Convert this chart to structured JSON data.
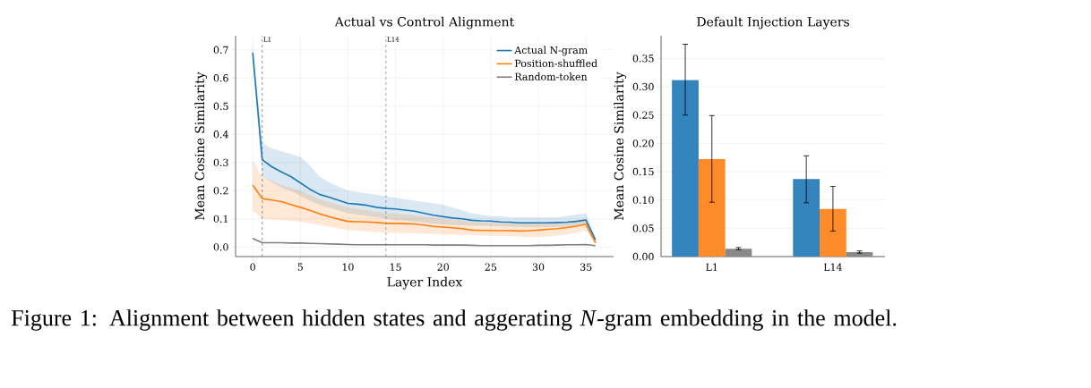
{
  "chart_data": [
    {
      "type": "line",
      "title": "Actual vs Control Alignment",
      "xlabel": "Layer Index",
      "ylabel": "Mean Cosine Similarity",
      "x": [
        0,
        1,
        2,
        3,
        4,
        5,
        6,
        7,
        8,
        9,
        10,
        11,
        12,
        13,
        14,
        15,
        16,
        17,
        18,
        19,
        20,
        21,
        22,
        23,
        24,
        25,
        26,
        27,
        28,
        29,
        30,
        31,
        32,
        33,
        34,
        35,
        36
      ],
      "series": [
        {
          "name": "Actual N-gram",
          "color": "#1f77b4",
          "values": [
            0.69,
            0.31,
            0.285,
            0.267,
            0.25,
            0.228,
            0.205,
            0.187,
            0.177,
            0.166,
            0.155,
            0.152,
            0.148,
            0.141,
            0.137,
            0.135,
            0.131,
            0.127,
            0.12,
            0.113,
            0.108,
            0.103,
            0.1,
            0.095,
            0.093,
            0.092,
            0.089,
            0.088,
            0.086,
            0.086,
            0.086,
            0.086,
            0.087,
            0.088,
            0.091,
            0.096,
            0.025
          ],
          "upper": [
            0.72,
            0.37,
            0.35,
            0.34,
            0.33,
            0.32,
            0.29,
            0.25,
            0.23,
            0.215,
            0.2,
            0.195,
            0.19,
            0.185,
            0.18,
            0.175,
            0.17,
            0.165,
            0.16,
            0.155,
            0.15,
            0.14,
            0.13,
            0.12,
            0.115,
            0.11,
            0.11,
            0.105,
            0.105,
            0.105,
            0.105,
            0.105,
            0.105,
            0.11,
            0.115,
            0.12,
            0.03
          ],
          "lower": [
            0.66,
            0.25,
            0.23,
            0.21,
            0.2,
            0.18,
            0.165,
            0.15,
            0.14,
            0.13,
            0.12,
            0.115,
            0.11,
            0.105,
            0.1,
            0.095,
            0.093,
            0.09,
            0.087,
            0.083,
            0.08,
            0.078,
            0.077,
            0.076,
            0.075,
            0.075,
            0.073,
            0.072,
            0.071,
            0.07,
            0.07,
            0.07,
            0.071,
            0.072,
            0.075,
            0.08,
            0.02
          ]
        },
        {
          "name": "Position-shuffled",
          "color": "#ff7f0e",
          "values": [
            0.22,
            0.172,
            0.167,
            0.161,
            0.151,
            0.141,
            0.13,
            0.118,
            0.108,
            0.099,
            0.091,
            0.09,
            0.089,
            0.087,
            0.084,
            0.084,
            0.083,
            0.082,
            0.078,
            0.073,
            0.071,
            0.068,
            0.065,
            0.06,
            0.059,
            0.059,
            0.058,
            0.058,
            0.057,
            0.058,
            0.06,
            0.063,
            0.065,
            0.069,
            0.074,
            0.081,
            0.015
          ],
          "upper": [
            0.31,
            0.25,
            0.235,
            0.22,
            0.21,
            0.2,
            0.185,
            0.17,
            0.16,
            0.15,
            0.14,
            0.135,
            0.13,
            0.125,
            0.12,
            0.118,
            0.115,
            0.112,
            0.108,
            0.104,
            0.1,
            0.097,
            0.094,
            0.09,
            0.088,
            0.085,
            0.085,
            0.085,
            0.085,
            0.085,
            0.085,
            0.086,
            0.088,
            0.09,
            0.095,
            0.1,
            0.02
          ],
          "lower": [
            0.13,
            0.1,
            0.098,
            0.096,
            0.093,
            0.09,
            0.085,
            0.078,
            0.072,
            0.066,
            0.06,
            0.058,
            0.056,
            0.053,
            0.05,
            0.05,
            0.049,
            0.048,
            0.047,
            0.046,
            0.045,
            0.044,
            0.043,
            0.042,
            0.041,
            0.04,
            0.039,
            0.038,
            0.037,
            0.036,
            0.035,
            0.037,
            0.04,
            0.045,
            0.05,
            0.06,
            0.01
          ]
        },
        {
          "name": "Random-token",
          "color": "#7f7f7f",
          "values": [
            0.03,
            0.015,
            0.015,
            0.015,
            0.014,
            0.014,
            0.013,
            0.012,
            0.011,
            0.01,
            0.009,
            0.008,
            0.008,
            0.008,
            0.008,
            0.008,
            0.008,
            0.008,
            0.008,
            0.007,
            0.007,
            0.007,
            0.007,
            0.006,
            0.005,
            0.005,
            0.005,
            0.005,
            0.005,
            0.005,
            0.006,
            0.006,
            0.007,
            0.008,
            0.008,
            0.009,
            0.005
          ]
        }
      ],
      "xlim": [
        -1.8,
        37.9
      ],
      "ylim": [
        -0.034,
        0.75
      ],
      "xticks": [
        0,
        5,
        10,
        15,
        20,
        25,
        30,
        35
      ],
      "yticks": [
        {
          "value": 0,
          "label": "0.0"
        },
        {
          "value": 0.1,
          "label": "0.1"
        },
        {
          "value": 0.2,
          "label": "0.2"
        },
        {
          "value": 0.3,
          "label": "0.3"
        },
        {
          "value": 0.4,
          "label": "0.4"
        },
        {
          "value": 0.5,
          "label": "0.5"
        },
        {
          "value": 0.6,
          "label": "0.6"
        },
        {
          "value": 0.7,
          "label": "0.7"
        }
      ],
      "ref_lines": [
        {
          "axis": "x",
          "value": 1,
          "label": "L1",
          "color": "#666666",
          "line_style": "dashed"
        },
        {
          "axis": "x",
          "value": 14,
          "label": "L14",
          "color": "#666666",
          "line_style": "dashed"
        }
      ],
      "grid": true,
      "legend": "top right",
      "annotations": [
        "Figure 1: Alignment between hidden states and aggerating *N*-gram embedding in the model."
      ]
    },
    {
      "type": "bar",
      "title": "Default Injection Layers",
      "ylabel": "Mean Cosine Similarity",
      "categories": [
        "L1",
        "L14"
      ],
      "series": [
        {
          "color": "#3383bc",
          "values": [
            0.312,
            0.137
          ],
          "errors": [
            [
              0.25,
              0.375
            ],
            [
              0.095,
              0.178
            ]
          ]
        },
        {
          "color": "#fe8b29",
          "values": [
            0.172,
            0.084
          ],
          "errors": [
            [
              0.096,
              0.249
            ],
            [
              0.045,
              0.124
            ]
          ]
        },
        {
          "color": "#898989",
          "values": [
            0.014,
            0.008
          ],
          "errors": [
            [
              0.012,
              0.016
            ],
            [
              0.006,
              0.01
            ]
          ]
        }
      ],
      "ylim": [
        0,
        0.39
      ],
      "yticks": [
        {
          "value": 0,
          "label": "0.00"
        },
        {
          "value": 0.05,
          "label": "0.05"
        },
        {
          "value": 0.1,
          "label": "0.10"
        },
        {
          "value": 0.15,
          "label": "0.15"
        },
        {
          "value": 0.2,
          "label": "0.20"
        },
        {
          "value": 0.25,
          "label": "0.25"
        },
        {
          "value": 0.3,
          "label": "0.30"
        },
        {
          "value": 0.35,
          "label": "0.35"
        }
      ],
      "grid": "y"
    }
  ]
}
